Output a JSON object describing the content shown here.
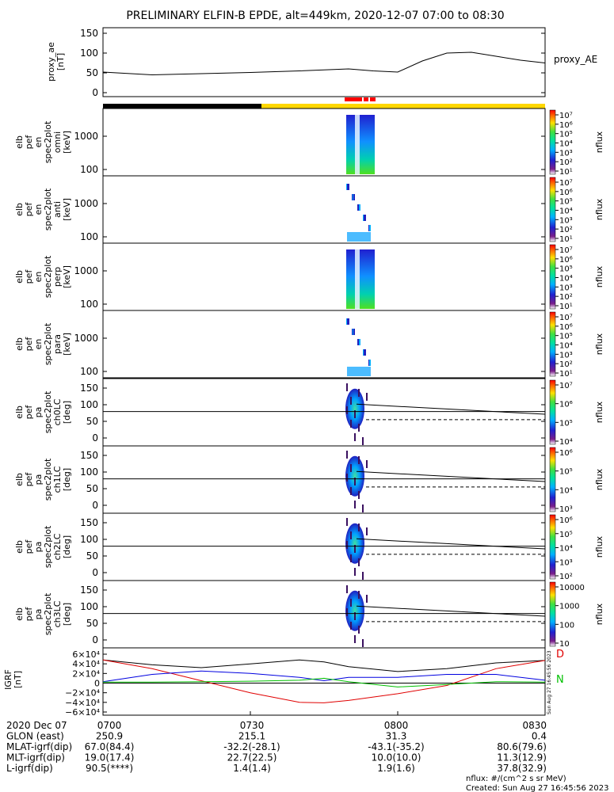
{
  "title": "PRELIMINARY ELFIN-B EPDE, alt=449km, 2020-12-07 07:00 to 08:30",
  "colors": {
    "black_bar": "#000000",
    "yellow_bar": "#ffd700",
    "red_marker": "#ff0000",
    "trace_black": "#000000",
    "trace_red": "#e00000",
    "trace_blue": "#0000e0",
    "trace_green": "#00c000"
  },
  "ae_panel": {
    "ylabel": [
      "proxy_ae",
      "[nT]"
    ],
    "legend": "proxy_AE",
    "yticks": [
      "150",
      "100",
      "50",
      "0"
    ]
  },
  "spec_panels": [
    {
      "ylabel": [
        "elb",
        "pef",
        "en",
        "spec2plot",
        "omni",
        "[keV]"
      ],
      "yticks": [
        "1000",
        "100"
      ],
      "cbar_unit": "nflux",
      "cbar_ticks": [
        "10⁷",
        "10⁶",
        "10⁵",
        "10⁴",
        "10³",
        "10²",
        "10¹"
      ]
    },
    {
      "ylabel": [
        "elb",
        "pef",
        "en",
        "spec2plot",
        "anti",
        "[keV]"
      ],
      "yticks": [
        "1000",
        "100"
      ],
      "cbar_unit": "nflux",
      "cbar_ticks": [
        "10⁷",
        "10⁶",
        "10⁵",
        "10⁴",
        "10³",
        "10²",
        "10¹"
      ]
    },
    {
      "ylabel": [
        "elb",
        "pef",
        "en",
        "spec2plot",
        "perp",
        "[keV]"
      ],
      "yticks": [
        "1000",
        "100"
      ],
      "cbar_unit": "nflux",
      "cbar_ticks": [
        "10⁷",
        "10⁶",
        "10⁵",
        "10⁴",
        "10³",
        "10²",
        "10¹"
      ]
    },
    {
      "ylabel": [
        "elb",
        "pef",
        "en",
        "spec2plot",
        "para",
        "[keV]"
      ],
      "yticks": [
        "1000",
        "100"
      ],
      "cbar_unit": "nflux",
      "cbar_ticks": [
        "10⁷",
        "10⁶",
        "10⁵",
        "10⁴",
        "10³",
        "10²",
        "10¹"
      ]
    },
    {
      "ylabel": [
        "elb",
        "pef",
        "pa",
        "spec2plot",
        "ch0LC",
        "[deg]"
      ],
      "yticks": [
        "150",
        "100",
        "50",
        "0"
      ],
      "cbar_unit": "nflux",
      "cbar_ticks": [
        "10⁷",
        "10⁶",
        "10⁵",
        "10⁴"
      ]
    },
    {
      "ylabel": [
        "elb",
        "pef",
        "pa",
        "spec2plot",
        "ch1LC",
        "[deg]"
      ],
      "yticks": [
        "150",
        "100",
        "50",
        "0"
      ],
      "cbar_unit": "nflux",
      "cbar_ticks": [
        "10⁶",
        "10⁵",
        "10⁴",
        "10³"
      ]
    },
    {
      "ylabel": [
        "elb",
        "pef",
        "pa",
        "spec2plot",
        "ch2LC",
        "[deg]"
      ],
      "yticks": [
        "150",
        "100",
        "50",
        "0"
      ],
      "cbar_unit": "nflux",
      "cbar_ticks": [
        "10⁶",
        "10⁵",
        "10⁴",
        "10³",
        "10²"
      ]
    },
    {
      "ylabel": [
        "elb",
        "pef",
        "pa",
        "spec2plot",
        "ch3LC",
        "[deg]"
      ],
      "yticks": [
        "150",
        "100",
        "50",
        "0"
      ],
      "cbar_unit": "nflux",
      "cbar_ticks": [
        "10000",
        "1000",
        "100",
        "10"
      ]
    }
  ],
  "igrf_panel": {
    "ylabel": [
      "IGRF",
      "[nT]"
    ],
    "yticks": [
      "6×10⁴",
      "4×10⁴",
      "2×10⁴",
      "0",
      "−2×10⁴",
      "−4×10⁴",
      "−6×10⁴"
    ],
    "side_labels": [
      "D",
      "N"
    ],
    "stamp": "Sun Aug 27 16:45:56 2023"
  },
  "footer": {
    "rows": [
      {
        "label": "2020 Dec 07",
        "values": [
          "0700",
          "0730",
          "0800",
          "0830"
        ]
      },
      {
        "label": "GLON (east)",
        "values": [
          "250.9",
          "215.1",
          "31.3",
          "0.4"
        ]
      },
      {
        "label": "MLAT-igrf(dip)",
        "values": [
          "67.0(84.4)",
          "-32.2(-28.1)",
          "-43.1(-35.2)",
          "80.6(79.6)"
        ]
      },
      {
        "label": "MLT-igrf(dip)",
        "values": [
          "19.0(17.4)",
          "22.7(22.5)",
          "10.0(10.0)",
          "11.3(12.9)"
        ]
      },
      {
        "label": "L-igrf(dip)",
        "values": [
          "90.5(****)",
          "1.4(1.4)",
          "1.9(1.6)",
          "37.8(32.9)"
        ]
      }
    ],
    "units": "nflux: #/(cm^2 s sr MeV)",
    "created": "Created: Sun Aug 27 16:45:56 2023"
  },
  "chart_data": [
    {
      "type": "line",
      "x": [
        "07:00",
        "07:10",
        "07:20",
        "07:30",
        "07:40",
        "07:50",
        "07:55",
        "08:00",
        "08:05",
        "08:10",
        "08:15",
        "08:20",
        "08:25",
        "08:30"
      ],
      "series": [
        {
          "name": "proxy_AE",
          "values": [
            52,
            45,
            48,
            51,
            55,
            60,
            55,
            52,
            80,
            100,
            102,
            92,
            82,
            75
          ]
        }
      ],
      "ylim": [
        0,
        150
      ],
      "xlim": [
        "07:00",
        "08:30"
      ]
    },
    {
      "type": "heatmap",
      "x_range": [
        "07:48",
        "07:54"
      ],
      "y_scale": "log",
      "ylim": [
        60,
        7000
      ],
      "color_scale": "log",
      "clim": [
        10,
        10000000
      ],
      "note_panels": [
        "omni",
        "anti",
        "perp",
        "para"
      ]
    },
    {
      "type": "line",
      "x": [
        "07:00",
        "07:10",
        "07:20",
        "07:30",
        "07:40",
        "07:45",
        "07:50",
        "08:00",
        "08:10",
        "08:20",
        "08:30"
      ],
      "series": [
        {
          "values": [
            48000,
            38000,
            32000,
            40000,
            48000,
            44000,
            34000,
            24000,
            30000,
            42000,
            47000
          ]
        },
        {
          "values": [
            48000,
            30000,
            5000,
            -20000,
            -40000,
            -41000,
            -36000,
            -22000,
            -5000,
            30000,
            47000
          ]
        },
        {
          "values": [
            3000,
            18000,
            25000,
            20000,
            12000,
            5000,
            12000,
            12000,
            18000,
            18000,
            6000
          ]
        },
        {
          "values": [
            2000,
            2000,
            3000,
            4000,
            6000,
            10000,
            3000,
            -8000,
            -3000,
            3000,
            2000
          ]
        }
      ],
      "ylim": [
        -60000,
        60000
      ]
    }
  ]
}
